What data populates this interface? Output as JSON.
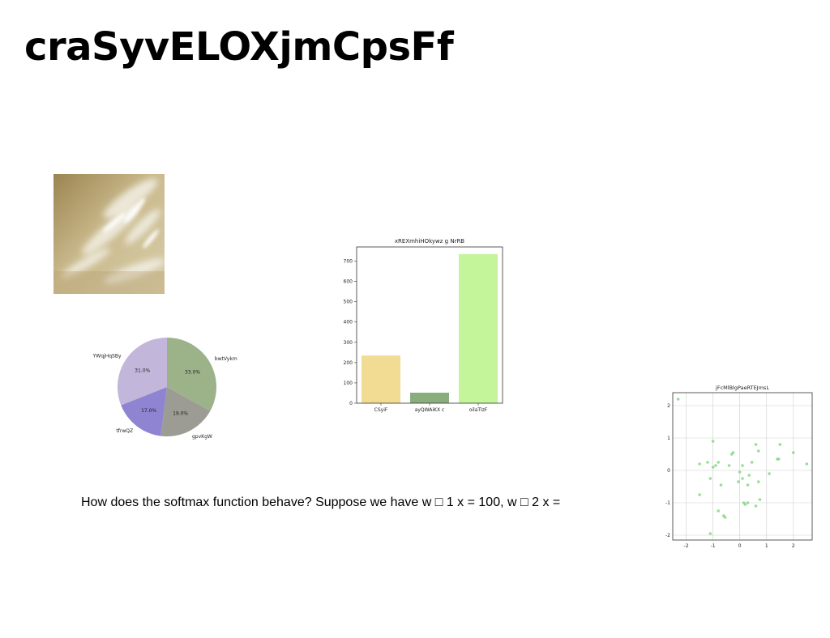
{
  "page": {
    "title": "craSyvELOXjmCpsFf",
    "body_text": "How does the softmax function behave? Suppose we have w □ 1 x = 100, w □ 2 x =",
    "photo_icon": "cloudy-sky-photo"
  },
  "chart_data": [
    {
      "type": "pie",
      "title": "",
      "labels": [
        "bwtVykm",
        "gpvKgW",
        "tfrwQZ",
        "YWqjHqSBy"
      ],
      "values": [
        33.0,
        19.0,
        17.0,
        31.0
      ],
      "percent_labels": [
        "33.0%",
        "19.0%",
        "17.0%",
        "31.0%"
      ],
      "colors": [
        "#9cb38a",
        "#9c9c94",
        "#8e84d2",
        "#c2b6db"
      ]
    },
    {
      "type": "bar",
      "title": "xREXmhiHOkywz g NrRB",
      "categories": [
        "CSyiF",
        "ayQWAiKX c",
        "oilaTlzF"
      ],
      "values": [
        235,
        52,
        735
      ],
      "colors": [
        "#f2dc94",
        "#8aad7e",
        "#c4f59a"
      ],
      "ylim": [
        0,
        770
      ],
      "yticks": [
        0,
        100,
        200,
        300,
        400,
        500,
        600,
        700
      ],
      "xlabel": "",
      "ylabel": "",
      "grid": false
    },
    {
      "type": "scatter",
      "title": "jFcMlBlgPaeRTEJmsL",
      "color": "#7fd47f",
      "xlim": [
        -2.5,
        2.7
      ],
      "ylim": [
        -2.15,
        2.4
      ],
      "xticks": [
        -2,
        -1,
        0,
        1,
        2
      ],
      "yticks": [
        -2,
        -1,
        0,
        1,
        2
      ],
      "grid": true,
      "points": [
        [
          -2.3,
          2.2
        ],
        [
          -1.0,
          0.9
        ],
        [
          0.6,
          0.8
        ],
        [
          1.5,
          0.8
        ],
        [
          -0.3,
          0.5
        ],
        [
          -0.25,
          0.55
        ],
        [
          0.7,
          0.6
        ],
        [
          2.0,
          0.55
        ],
        [
          1.4,
          0.35
        ],
        [
          1.45,
          0.35
        ],
        [
          -1.2,
          0.25
        ],
        [
          -1.5,
          0.2
        ],
        [
          -0.8,
          0.25
        ],
        [
          -0.9,
          0.15
        ],
        [
          -1.0,
          0.1
        ],
        [
          -0.4,
          0.15
        ],
        [
          0.1,
          0.15
        ],
        [
          0.45,
          0.25
        ],
        [
          2.5,
          0.2
        ],
        [
          0.0,
          -0.05
        ],
        [
          1.1,
          -0.1
        ],
        [
          0.35,
          -0.15
        ],
        [
          0.1,
          -0.25
        ],
        [
          -0.05,
          -0.35
        ],
        [
          0.7,
          -0.35
        ],
        [
          -1.1,
          -0.25
        ],
        [
          -0.7,
          -0.45
        ],
        [
          0.3,
          -0.45
        ],
        [
          -1.5,
          -0.75
        ],
        [
          0.75,
          -0.9
        ],
        [
          0.15,
          -1.0
        ],
        [
          0.2,
          -1.05
        ],
        [
          0.3,
          -1.0
        ],
        [
          0.6,
          -1.1
        ],
        [
          -0.8,
          -1.25
        ],
        [
          -0.6,
          -1.4
        ],
        [
          -0.55,
          -1.45
        ],
        [
          -1.1,
          -1.95
        ]
      ]
    }
  ]
}
